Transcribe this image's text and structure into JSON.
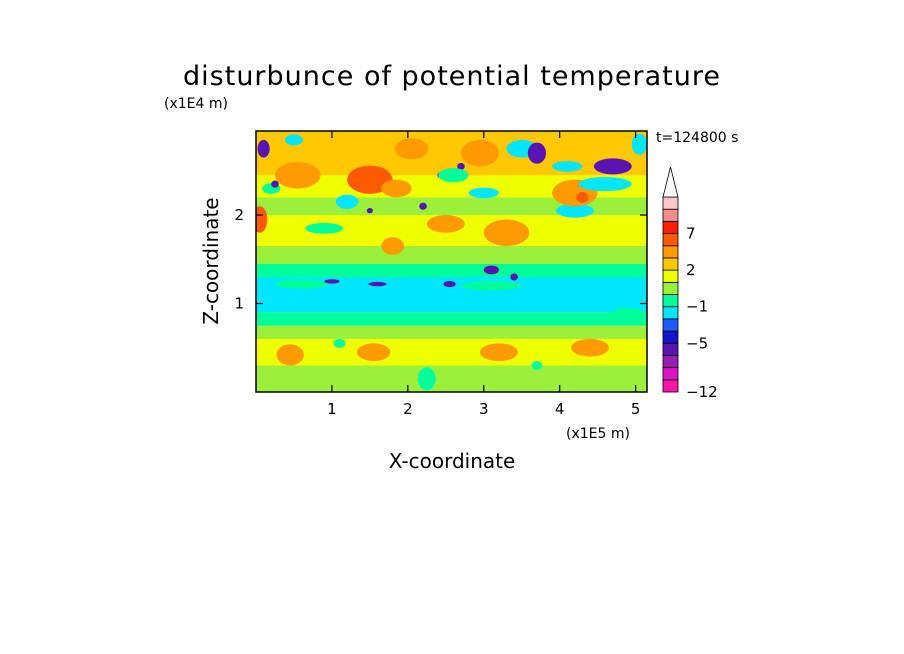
{
  "chart_data": {
    "type": "heatmap",
    "title": "disturbunce of potential temperature",
    "xlabel": "X-coordinate",
    "ylabel": "Z-coordinate",
    "x_unit": "(x1E5 m)",
    "y_unit": "(x1E4 m)",
    "time_label": "t=124800 s",
    "xlim": [
      0,
      5.15
    ],
    "ylim": [
      0,
      2.95
    ],
    "x_ticks": [
      1,
      2,
      3,
      4,
      5
    ],
    "y_ticks": [
      1,
      2
    ],
    "colorbar": {
      "tick_labels": [
        "7",
        "2",
        "−1",
        "−5",
        "−12"
      ],
      "tick_values": [
        7,
        2,
        -1,
        -5,
        -12
      ],
      "levels": [
        -12,
        -10,
        -8,
        -6,
        -5,
        -4,
        -2,
        -1,
        0,
        1,
        2,
        3,
        5,
        7,
        9,
        11
      ],
      "colors": [
        "#ff14aa",
        "#dc14c8",
        "#9b1eb4",
        "#5a14b4",
        "#1414cd",
        "#1e5aff",
        "#00e6ff",
        "#00ff9b",
        "#9bf03c",
        "#f0ff00",
        "#ffc800",
        "#ff9b00",
        "#ff5a00",
        "#ff1e00",
        "#f08c8c",
        "#ffc8c8"
      ],
      "extend": "max"
    },
    "bands": [
      {
        "z": [
          0.0,
          0.3
        ],
        "value": 0.7
      },
      {
        "z": [
          0.3,
          0.6
        ],
        "value": 1.3
      },
      {
        "z": [
          0.6,
          0.75
        ],
        "value": 0.5
      },
      {
        "z": [
          0.75,
          0.9
        ],
        "value": -0.3
      },
      {
        "z": [
          0.9,
          1.3
        ],
        "value": -1.5
      },
      {
        "z": [
          1.3,
          1.45
        ],
        "value": -0.4
      },
      {
        "z": [
          1.45,
          1.65
        ],
        "value": 0.6
      },
      {
        "z": [
          1.65,
          2.0
        ],
        "value": 1.8
      },
      {
        "z": [
          2.0,
          2.2
        ],
        "value": 0.4
      },
      {
        "z": [
          2.2,
          2.45
        ],
        "value": 1.5
      },
      {
        "z": [
          2.45,
          2.95
        ],
        "value": 2.4
      }
    ],
    "features": [
      {
        "x": 0.45,
        "z": 0.42,
        "value": 3.2,
        "rx": 0.18,
        "rz": 0.12
      },
      {
        "x": 1.55,
        "z": 0.45,
        "value": 3.0,
        "rx": 0.22,
        "rz": 0.1
      },
      {
        "x": 3.2,
        "z": 0.45,
        "value": 3.1,
        "rx": 0.25,
        "rz": 0.1
      },
      {
        "x": 4.4,
        "z": 0.5,
        "value": 3.0,
        "rx": 0.25,
        "rz": 0.1
      },
      {
        "x": 2.25,
        "z": 0.15,
        "value": -0.5,
        "rx": 0.12,
        "rz": 0.13
      },
      {
        "x": 1.1,
        "z": 0.55,
        "value": -0.4,
        "rx": 0.08,
        "rz": 0.05
      },
      {
        "x": 3.7,
        "z": 0.3,
        "value": -0.4,
        "rx": 0.07,
        "rz": 0.05
      },
      {
        "x": 4.9,
        "z": 0.9,
        "value": -0.4,
        "rx": 0.2,
        "rz": 0.05
      },
      {
        "x": 0.6,
        "z": 1.22,
        "value": -0.4,
        "rx": 0.35,
        "rz": 0.05
      },
      {
        "x": 3.1,
        "z": 1.2,
        "value": -0.4,
        "rx": 0.4,
        "rz": 0.05
      },
      {
        "x": 1.0,
        "z": 1.25,
        "value": -5.2,
        "rx": 0.1,
        "rz": 0.025
      },
      {
        "x": 1.6,
        "z": 1.22,
        "value": -5.2,
        "rx": 0.12,
        "rz": 0.025
      },
      {
        "x": 2.55,
        "z": 1.22,
        "value": -5.5,
        "rx": 0.08,
        "rz": 0.035
      },
      {
        "x": 3.1,
        "z": 1.38,
        "value": -5.6,
        "rx": 0.1,
        "rz": 0.05
      },
      {
        "x": 3.4,
        "z": 1.3,
        "value": -5.2,
        "rx": 0.05,
        "rz": 0.04
      },
      {
        "x": 1.8,
        "z": 1.65,
        "value": 3.5,
        "rx": 0.15,
        "rz": 0.1
      },
      {
        "x": 3.3,
        "z": 1.8,
        "value": 3.3,
        "rx": 0.3,
        "rz": 0.15
      },
      {
        "x": 2.5,
        "z": 1.9,
        "value": 3.2,
        "rx": 0.25,
        "rz": 0.1
      },
      {
        "x": 0.9,
        "z": 1.85,
        "value": -0.5,
        "rx": 0.25,
        "rz": 0.06
      },
      {
        "x": 0.05,
        "z": 1.95,
        "value": 5.5,
        "rx": 0.1,
        "rz": 0.15
      },
      {
        "x": 1.2,
        "z": 2.15,
        "value": -1.3,
        "rx": 0.15,
        "rz": 0.08
      },
      {
        "x": 4.2,
        "z": 2.05,
        "value": -1.2,
        "rx": 0.25,
        "rz": 0.08
      },
      {
        "x": 1.5,
        "z": 2.05,
        "value": -5.2,
        "rx": 0.04,
        "rz": 0.03
      },
      {
        "x": 2.2,
        "z": 2.1,
        "value": -5.2,
        "rx": 0.05,
        "rz": 0.04
      },
      {
        "x": 0.2,
        "z": 2.3,
        "value": -0.5,
        "rx": 0.12,
        "rz": 0.06
      },
      {
        "x": 0.55,
        "z": 2.45,
        "value": 3.3,
        "rx": 0.3,
        "rz": 0.15
      },
      {
        "x": 1.5,
        "z": 2.4,
        "value": 5.4,
        "rx": 0.3,
        "rz": 0.16
      },
      {
        "x": 1.85,
        "z": 2.3,
        "value": 3.5,
        "rx": 0.2,
        "rz": 0.1
      },
      {
        "x": 2.05,
        "z": 2.75,
        "value": 3.4,
        "rx": 0.22,
        "rz": 0.12
      },
      {
        "x": 2.95,
        "z": 2.7,
        "value": 3.2,
        "rx": 0.25,
        "rz": 0.15
      },
      {
        "x": 4.2,
        "z": 2.25,
        "value": 3.6,
        "rx": 0.3,
        "rz": 0.15
      },
      {
        "x": 4.3,
        "z": 2.2,
        "value": 5.5,
        "rx": 0.08,
        "rz": 0.06
      },
      {
        "x": 3.0,
        "z": 2.25,
        "value": -1.2,
        "rx": 0.2,
        "rz": 0.06
      },
      {
        "x": 2.45,
        "z": 2.45,
        "value": -5.3,
        "rx": 0.06,
        "rz": 0.04
      },
      {
        "x": 2.7,
        "z": 2.55,
        "value": -5.3,
        "rx": 0.05,
        "rz": 0.04
      },
      {
        "x": 2.6,
        "z": 2.45,
        "value": -0.5,
        "rx": 0.2,
        "rz": 0.08
      },
      {
        "x": 0.1,
        "z": 2.75,
        "value": -5.4,
        "rx": 0.08,
        "rz": 0.1
      },
      {
        "x": 0.25,
        "z": 2.35,
        "value": -5.1,
        "rx": 0.05,
        "rz": 0.04
      },
      {
        "x": 0.5,
        "z": 2.85,
        "value": -1.2,
        "rx": 0.12,
        "rz": 0.06
      },
      {
        "x": 3.5,
        "z": 2.75,
        "value": -1.3,
        "rx": 0.2,
        "rz": 0.1
      },
      {
        "x": 3.7,
        "z": 2.7,
        "value": -5.4,
        "rx": 0.12,
        "rz": 0.12
      },
      {
        "x": 4.6,
        "z": 2.35,
        "value": -1.3,
        "rx": 0.35,
        "rz": 0.08
      },
      {
        "x": 4.7,
        "z": 2.55,
        "value": -5.5,
        "rx": 0.25,
        "rz": 0.09
      },
      {
        "x": 4.1,
        "z": 2.55,
        "value": -1.2,
        "rx": 0.2,
        "rz": 0.06
      },
      {
        "x": 5.05,
        "z": 2.8,
        "value": -1.3,
        "rx": 0.1,
        "rz": 0.12
      }
    ]
  }
}
